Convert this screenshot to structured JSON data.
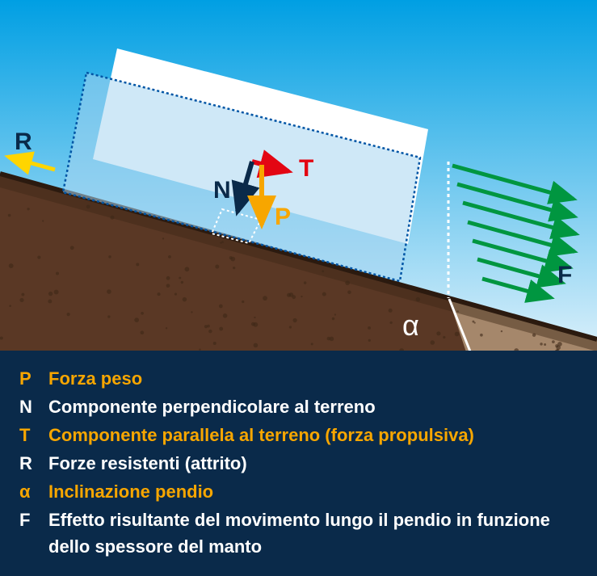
{
  "diagram": {
    "sky_top": "#009fe3",
    "sky_bottom": "#e6f4fc",
    "soil_main": "#5a3825",
    "soil_dark": "#3d2817",
    "soil_light": "#a5876b",
    "soil_light2": "#b89a7e",
    "soil_border": "#2b1a0f",
    "block_fill": "#a8d5f0",
    "block_stroke": "#0055a5",
    "labels": {
      "R": {
        "text": "R",
        "color": "#0a2a4a"
      },
      "T": {
        "text": "T",
        "color": "#e30613"
      },
      "N": {
        "text": "N",
        "color": "#0a2a4a"
      },
      "P": {
        "text": "P",
        "color": "#f7a600"
      },
      "F": {
        "text": "F",
        "color": "#0a2a4a"
      },
      "alpha": {
        "text": "α",
        "color": "#ffffff"
      }
    },
    "arrows": {
      "R": "#ffd500",
      "T": "#e30613",
      "N": "#0a2a4a",
      "P": "#f7a600",
      "F": "#009640"
    },
    "label_font_size": 30,
    "alpha_font_size": 36
  },
  "legend": {
    "bg": "#0a2a4a",
    "items": [
      {
        "key": "P",
        "key_color": "#f7a600",
        "text": "Forza peso",
        "text_color": "#f7a600"
      },
      {
        "key": "N",
        "key_color": "#ffffff",
        "text": "Componente perpendicolare al terreno",
        "text_color": "#ffffff"
      },
      {
        "key": "T",
        "key_color": "#f7a600",
        "text": "Componente parallela al terreno (forza propulsiva)",
        "text_color": "#f7a600"
      },
      {
        "key": "R",
        "key_color": "#ffffff",
        "text": "Forze resistenti (attrito)",
        "text_color": "#ffffff"
      },
      {
        "key": "α",
        "key_color": "#f7a600",
        "text": "Inclinazione pendio",
        "text_color": "#f7a600"
      },
      {
        "key": "F",
        "key_color": "#ffffff",
        "text": "Effetto risultante del movimento lungo il pendio in funzione dello spessore del manto",
        "text_color": "#ffffff"
      }
    ]
  }
}
